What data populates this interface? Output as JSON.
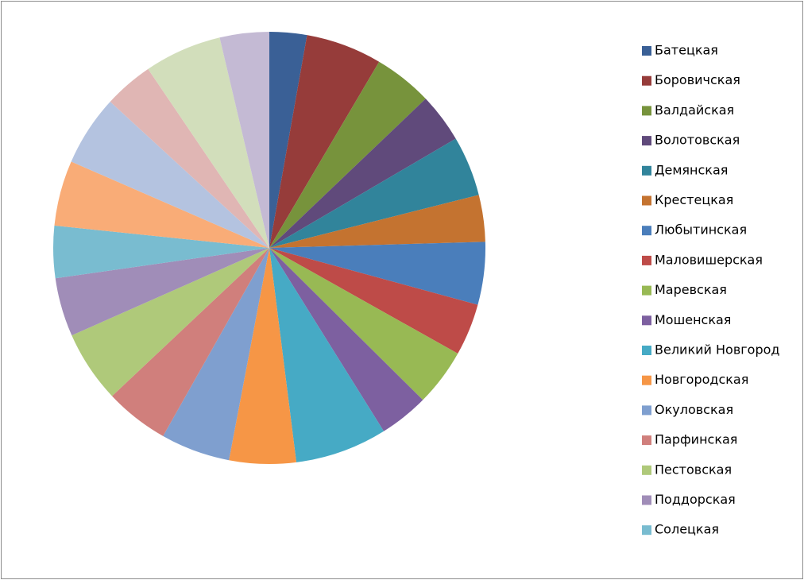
{
  "chart_data": {
    "type": "pie",
    "categories": [
      "Батецкая",
      "Боровичская",
      "Валдайская",
      "Волотовская",
      "Демянская",
      "Крестецкая",
      "Любытинская",
      "Маловишерская",
      "Маревская",
      "Мошенская",
      "Великий Новгород",
      "Новгородская",
      "Окуловская",
      "Парфинская",
      "Пестовская",
      "Поддорская",
      "Солецкая",
      null,
      null,
      null,
      null,
      null
    ],
    "values": [
      2.8,
      5.7,
      4.4,
      3.7,
      4.5,
      3.5,
      4.7,
      3.9,
      4.3,
      3.7,
      6.9,
      5.0,
      5.2,
      4.8,
      5.4,
      4.4,
      3.9,
      4.9,
      5.3,
      3.7,
      5.8,
      3.7
    ],
    "colors": [
      "#3A6096",
      "#963C3A",
      "#77933C",
      "#604A7B",
      "#31849B",
      "#C47330",
      "#4A7EBB",
      "#BE4B48",
      "#98B954",
      "#7D60A0",
      "#46AAC5",
      "#F69646",
      "#7F9FCF",
      "#D07F7C",
      "#AFC97A",
      "#A08DB8",
      "#79BCD0",
      "#F9AC77",
      "#B4C3E0",
      "#E0B6B4",
      "#D2DEBB",
      "#C4BAD4"
    ],
    "legend": "right"
  }
}
